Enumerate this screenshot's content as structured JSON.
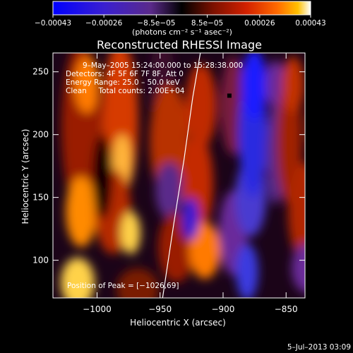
{
  "chart_data": {
    "type": "heatmap",
    "title": "Reconstructed RHESSI Image",
    "xlabel": "Heliocentric X (arcsec)",
    "ylabel": "Heliocentric Y (arcsec)",
    "xlim": [
      -1035,
      -835
    ],
    "ylim": [
      70,
      265
    ],
    "x_ticks": [
      -1000,
      -950,
      -900,
      -850
    ],
    "x_tick_labels": [
      "−1000",
      "−950",
      "−900",
      "−850"
    ],
    "y_ticks": [
      100,
      150,
      200,
      250
    ],
    "y_tick_labels": [
      "100",
      "150",
      "200",
      "250"
    ],
    "colorbar": {
      "tick_values": [
        -0.00043,
        -0.00026,
        -8.5e-05,
        8.5e-05,
        0.00026,
        0.00043
      ],
      "tick_labels": [
        "−0.00043",
        "−0.00026",
        "−8.5e−05",
        "8.5e−05",
        "0.00026",
        "0.00043"
      ],
      "unit_label": "(photons cm⁻² s⁻¹ asec⁻²)",
      "colors": [
        "#0000ff",
        "#3a1fd0",
        "#5a2a8a",
        "#000000",
        "#7a1000",
        "#d22000",
        "#ff6a00",
        "#ffc000",
        "#ffffff"
      ]
    },
    "annotations": [
      "9–May–2005 15:24:00.000 to 15:28:38.000",
      "Detectors: 4F 5F 6F 7F 8F, Att 0",
      "Energy Range: 25.0 – 50.0 keV",
      "Clean     Total counts: 2.00E+04"
    ],
    "peak_label": "Position of Peak = [−1026,69]",
    "peak": {
      "x": -1026,
      "y": 69
    },
    "marker": {
      "x": -895,
      "y": 231
    },
    "limb": [
      [
        -948,
        70
      ],
      [
        -939,
        130
      ],
      [
        -931,
        180
      ],
      [
        -924,
        230
      ],
      [
        -918,
        265
      ]
    ],
    "timestamp": "5–Jul–2013 03:09"
  }
}
